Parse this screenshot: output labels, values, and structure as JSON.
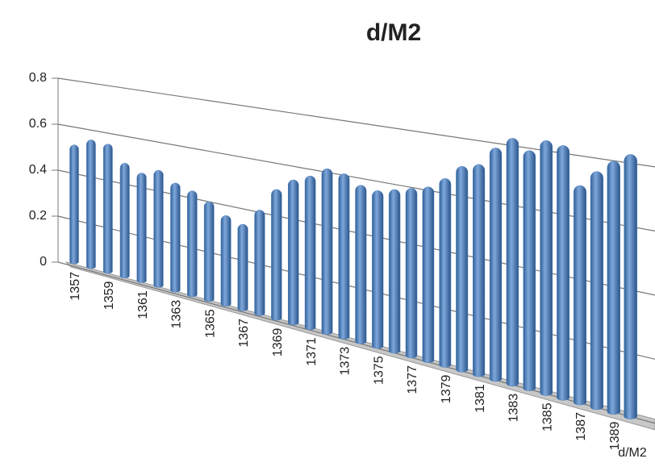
{
  "chart_data": {
    "type": "bar3d",
    "title": "d/M2",
    "categories": [
      "1357",
      null,
      "1359",
      null,
      "1361",
      null,
      "1363",
      null,
      "1365",
      null,
      "1367",
      null,
      "1369",
      null,
      "1371",
      null,
      "1373",
      null,
      "1375",
      null,
      "1377",
      null,
      "1379",
      null,
      "1381",
      null,
      "1383",
      null,
      "1385",
      null,
      "1387",
      null,
      "1389",
      null
    ],
    "series": [
      {
        "name": "d/M2",
        "color": "#4f81bd",
        "values": [
          0.51,
          0.54,
          0.53,
          0.46,
          0.43,
          0.45,
          0.41,
          0.39,
          0.36,
          0.32,
          0.3,
          0.36,
          0.44,
          0.48,
          0.5,
          0.53,
          0.52,
          0.49,
          0.48,
          0.49,
          0.5,
          0.51,
          0.54,
          0.58,
          0.59,
          0.64,
          0.67,
          0.64,
          0.67,
          0.66,
          0.56,
          0.6,
          0.63,
          0.65
        ]
      }
    ],
    "ylim": [
      0,
      0.8
    ],
    "yticks": [
      0,
      0.2,
      0.4,
      0.6,
      0.8
    ],
    "grid": true
  }
}
